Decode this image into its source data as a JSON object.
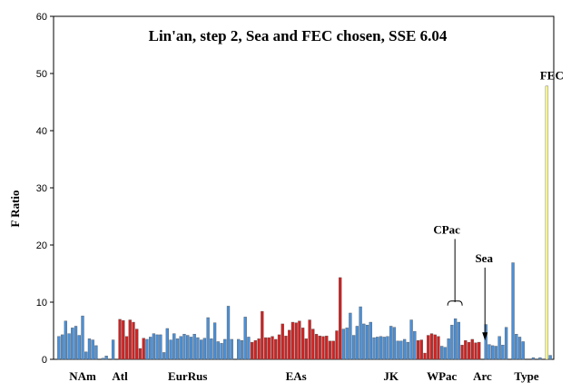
{
  "chart_data": {
    "type": "bar",
    "title": "Lin'an, step 2, Sea and FEC chosen, SSE 6.04",
    "xlabel": "",
    "ylabel": "F Ratio",
    "ylim": [
      0,
      60
    ],
    "yticks": [
      0,
      10,
      20,
      30,
      40,
      50,
      60
    ],
    "grid": false,
    "legend": "none",
    "colors": {
      "blue": "#4a90d9",
      "red": "#d42020",
      "yellow": "#ffff99",
      "bar_stroke": "#555555"
    },
    "group_labels": [
      {
        "label": "NAm",
        "at_bar": 7
      },
      {
        "label": "Atl",
        "at_bar": 18
      },
      {
        "label": "EurRus",
        "at_bar": 38
      },
      {
        "label": "EAs",
        "at_bar": 70
      },
      {
        "label": "JK",
        "at_bar": 98
      },
      {
        "label": "WPac",
        "at_bar": 113
      },
      {
        "label": "Arc",
        "at_bar": 125
      },
      {
        "label": "Type",
        "at_bar": 138
      }
    ],
    "annotations": [
      {
        "label": "CPac",
        "at_bar": 115,
        "y": 22
      },
      {
        "label": "Sea",
        "at_bar": 126,
        "y": 17
      },
      {
        "label": "FEC",
        "at_bar": 146,
        "y": 49
      }
    ],
    "bars": [
      {
        "v": 4.0,
        "c": "blue"
      },
      {
        "v": 4.3,
        "c": "blue"
      },
      {
        "v": 6.7,
        "c": "blue"
      },
      {
        "v": 4.5,
        "c": "blue"
      },
      {
        "v": 5.5,
        "c": "blue"
      },
      {
        "v": 5.8,
        "c": "blue"
      },
      {
        "v": 4.2,
        "c": "blue"
      },
      {
        "v": 7.6,
        "c": "blue"
      },
      {
        "v": 1.3,
        "c": "blue"
      },
      {
        "v": 3.6,
        "c": "blue"
      },
      {
        "v": 3.4,
        "c": "blue"
      },
      {
        "v": 2.4,
        "c": "blue"
      },
      {
        "v": 0.0,
        "c": "blue"
      },
      {
        "v": 0.2,
        "c": "blue"
      },
      {
        "v": 0.6,
        "c": "blue"
      },
      {
        "v": 0.0,
        "c": "blue"
      },
      {
        "v": 3.4,
        "c": "blue"
      },
      {
        "v": 0.0,
        "c": "blue"
      },
      {
        "v": 7.0,
        "c": "red"
      },
      {
        "v": 6.8,
        "c": "red"
      },
      {
        "v": 4.0,
        "c": "red"
      },
      {
        "v": 6.9,
        "c": "red"
      },
      {
        "v": 6.5,
        "c": "red"
      },
      {
        "v": 5.3,
        "c": "red"
      },
      {
        "v": 1.9,
        "c": "red"
      },
      {
        "v": 3.7,
        "c": "red"
      },
      {
        "v": 3.5,
        "c": "blue"
      },
      {
        "v": 3.9,
        "c": "blue"
      },
      {
        "v": 4.5,
        "c": "blue"
      },
      {
        "v": 4.3,
        "c": "blue"
      },
      {
        "v": 4.3,
        "c": "blue"
      },
      {
        "v": 1.2,
        "c": "blue"
      },
      {
        "v": 5.4,
        "c": "blue"
      },
      {
        "v": 3.4,
        "c": "blue"
      },
      {
        "v": 4.5,
        "c": "blue"
      },
      {
        "v": 3.6,
        "c": "blue"
      },
      {
        "v": 4.0,
        "c": "blue"
      },
      {
        "v": 4.4,
        "c": "blue"
      },
      {
        "v": 4.2,
        "c": "blue"
      },
      {
        "v": 3.9,
        "c": "blue"
      },
      {
        "v": 4.4,
        "c": "blue"
      },
      {
        "v": 3.8,
        "c": "blue"
      },
      {
        "v": 3.4,
        "c": "blue"
      },
      {
        "v": 3.7,
        "c": "blue"
      },
      {
        "v": 7.3,
        "c": "blue"
      },
      {
        "v": 3.6,
        "c": "blue"
      },
      {
        "v": 6.4,
        "c": "blue"
      },
      {
        "v": 3.1,
        "c": "blue"
      },
      {
        "v": 2.8,
        "c": "blue"
      },
      {
        "v": 3.5,
        "c": "blue"
      },
      {
        "v": 9.3,
        "c": "blue"
      },
      {
        "v": 3.5,
        "c": "blue"
      },
      {
        "v": 0.0,
        "c": "blue"
      },
      {
        "v": 3.5,
        "c": "blue"
      },
      {
        "v": 3.3,
        "c": "blue"
      },
      {
        "v": 7.4,
        "c": "blue"
      },
      {
        "v": 3.9,
        "c": "blue"
      },
      {
        "v": 3.0,
        "c": "red"
      },
      {
        "v": 3.3,
        "c": "red"
      },
      {
        "v": 3.6,
        "c": "red"
      },
      {
        "v": 8.4,
        "c": "red"
      },
      {
        "v": 3.8,
        "c": "red"
      },
      {
        "v": 3.8,
        "c": "red"
      },
      {
        "v": 4.0,
        "c": "red"
      },
      {
        "v": 3.5,
        "c": "red"
      },
      {
        "v": 4.3,
        "c": "red"
      },
      {
        "v": 6.2,
        "c": "red"
      },
      {
        "v": 4.1,
        "c": "red"
      },
      {
        "v": 5.1,
        "c": "red"
      },
      {
        "v": 6.5,
        "c": "red"
      },
      {
        "v": 6.4,
        "c": "red"
      },
      {
        "v": 6.7,
        "c": "red"
      },
      {
        "v": 5.5,
        "c": "red"
      },
      {
        "v": 3.6,
        "c": "red"
      },
      {
        "v": 6.9,
        "c": "red"
      },
      {
        "v": 5.3,
        "c": "red"
      },
      {
        "v": 4.4,
        "c": "red"
      },
      {
        "v": 4.1,
        "c": "red"
      },
      {
        "v": 4.0,
        "c": "red"
      },
      {
        "v": 4.1,
        "c": "red"
      },
      {
        "v": 3.2,
        "c": "red"
      },
      {
        "v": 3.2,
        "c": "red"
      },
      {
        "v": 5.0,
        "c": "red"
      },
      {
        "v": 14.3,
        "c": "red"
      },
      {
        "v": 5.3,
        "c": "blue"
      },
      {
        "v": 5.5,
        "c": "blue"
      },
      {
        "v": 8.1,
        "c": "blue"
      },
      {
        "v": 4.2,
        "c": "blue"
      },
      {
        "v": 5.8,
        "c": "blue"
      },
      {
        "v": 9.2,
        "c": "blue"
      },
      {
        "v": 6.2,
        "c": "blue"
      },
      {
        "v": 6.0,
        "c": "blue"
      },
      {
        "v": 6.5,
        "c": "blue"
      },
      {
        "v": 3.8,
        "c": "blue"
      },
      {
        "v": 3.9,
        "c": "blue"
      },
      {
        "v": 4.0,
        "c": "blue"
      },
      {
        "v": 3.9,
        "c": "blue"
      },
      {
        "v": 4.0,
        "c": "blue"
      },
      {
        "v": 5.8,
        "c": "blue"
      },
      {
        "v": 5.6,
        "c": "blue"
      },
      {
        "v": 3.2,
        "c": "blue"
      },
      {
        "v": 3.2,
        "c": "blue"
      },
      {
        "v": 3.5,
        "c": "blue"
      },
      {
        "v": 3.0,
        "c": "blue"
      },
      {
        "v": 6.9,
        "c": "blue"
      },
      {
        "v": 4.9,
        "c": "blue"
      },
      {
        "v": 3.3,
        "c": "red"
      },
      {
        "v": 3.4,
        "c": "red"
      },
      {
        "v": 1.1,
        "c": "red"
      },
      {
        "v": 4.2,
        "c": "red"
      },
      {
        "v": 4.5,
        "c": "red"
      },
      {
        "v": 4.3,
        "c": "red"
      },
      {
        "v": 4.0,
        "c": "red"
      },
      {
        "v": 2.3,
        "c": "blue"
      },
      {
        "v": 2.1,
        "c": "blue"
      },
      {
        "v": 3.6,
        "c": "blue"
      },
      {
        "v": 6.0,
        "c": "blue"
      },
      {
        "v": 7.1,
        "c": "blue"
      },
      {
        "v": 6.5,
        "c": "blue"
      },
      {
        "v": 2.5,
        "c": "red"
      },
      {
        "v": 3.3,
        "c": "red"
      },
      {
        "v": 3.0,
        "c": "red"
      },
      {
        "v": 3.5,
        "c": "red"
      },
      {
        "v": 2.9,
        "c": "red"
      },
      {
        "v": 3.0,
        "c": "red"
      },
      {
        "v": 0.0,
        "c": "red"
      },
      {
        "v": 6.1,
        "c": "blue"
      },
      {
        "v": 2.6,
        "c": "blue"
      },
      {
        "v": 2.4,
        "c": "blue"
      },
      {
        "v": 2.3,
        "c": "blue"
      },
      {
        "v": 4.0,
        "c": "blue"
      },
      {
        "v": 2.5,
        "c": "blue"
      },
      {
        "v": 5.6,
        "c": "blue"
      },
      {
        "v": 0.0,
        "c": "blue"
      },
      {
        "v": 16.9,
        "c": "blue"
      },
      {
        "v": 4.4,
        "c": "blue"
      },
      {
        "v": 3.9,
        "c": "blue"
      },
      {
        "v": 3.1,
        "c": "blue"
      },
      {
        "v": 0.0,
        "c": "blue"
      },
      {
        "v": 0.0,
        "c": "blue"
      },
      {
        "v": 0.3,
        "c": "blue"
      },
      {
        "v": 0.0,
        "c": "blue"
      },
      {
        "v": 0.3,
        "c": "blue"
      },
      {
        "v": 0.0,
        "c": "blue"
      },
      {
        "v": 47.8,
        "c": "yellow"
      },
      {
        "v": 0.7,
        "c": "blue"
      }
    ]
  }
}
